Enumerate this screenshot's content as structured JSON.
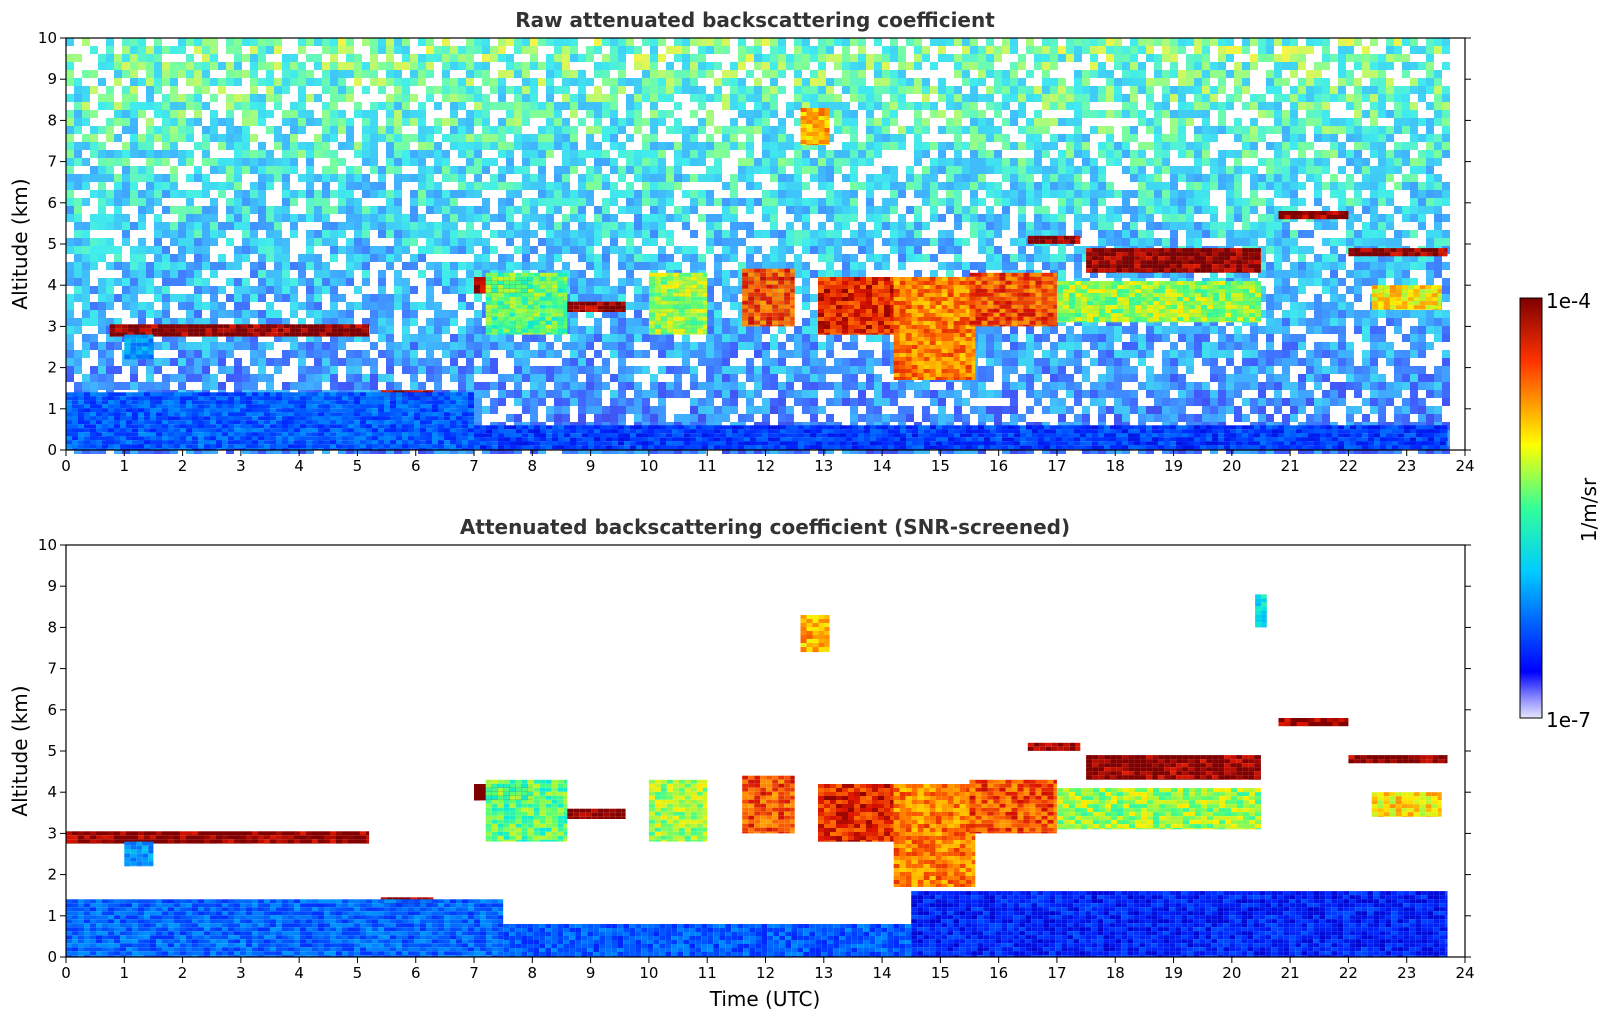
{
  "chart_data": [
    {
      "type": "heatmap",
      "title": "Raw attenuated backscattering coefficient",
      "xlabel": "",
      "ylabel": "Altitude (km)",
      "xlim": [
        0,
        24
      ],
      "ylim": [
        0,
        10
      ],
      "x_ticks": [
        "0",
        "1",
        "2",
        "3",
        "4",
        "5",
        "6",
        "7",
        "8",
        "9",
        "10",
        "11",
        "12",
        "13",
        "14",
        "15",
        "16",
        "17",
        "18",
        "19",
        "20",
        "21",
        "22",
        "23",
        "24"
      ],
      "y_ticks": [
        "0",
        "1",
        "2",
        "3",
        "4",
        "5",
        "6",
        "7",
        "8",
        "9",
        "10"
      ],
      "data_x_end": 23.7,
      "noise_background": true,
      "features": [
        {
          "x": [
            0.75,
            5.2
          ],
          "y": [
            2.75,
            3.05
          ],
          "level": 1.0
        },
        {
          "x": [
            5.4,
            6.3
          ],
          "y": [
            1.25,
            1.45
          ],
          "level": 1.0
        },
        {
          "x": [
            1.0,
            1.5
          ],
          "y": [
            2.2,
            2.8
          ],
          "level": 0.3
        },
        {
          "x": [
            7.0,
            8.0
          ],
          "y": [
            3.8,
            4.2
          ],
          "level": 1.0
        },
        {
          "x": [
            7.2,
            8.6
          ],
          "y": [
            2.8,
            4.3
          ],
          "level": 0.55
        },
        {
          "x": [
            8.6,
            9.6
          ],
          "y": [
            3.35,
            3.6
          ],
          "level": 1.0
        },
        {
          "x": [
            10.0,
            11.0
          ],
          "y": [
            2.8,
            4.3
          ],
          "level": 0.6
        },
        {
          "x": [
            11.6,
            12.5
          ],
          "y": [
            3.0,
            4.4
          ],
          "level": 0.85
        },
        {
          "x": [
            12.9,
            14.2
          ],
          "y": [
            2.8,
            4.2
          ],
          "level": 0.9
        },
        {
          "x": [
            14.2,
            15.6
          ],
          "y": [
            1.7,
            4.2
          ],
          "level": 0.8
        },
        {
          "x": [
            15.5,
            17.0
          ],
          "y": [
            3.0,
            4.3
          ],
          "level": 0.85
        },
        {
          "x": [
            17.0,
            20.5
          ],
          "y": [
            3.1,
            4.1
          ],
          "level": 0.6
        },
        {
          "x": [
            16.5,
            17.4
          ],
          "y": [
            5.0,
            5.2
          ],
          "level": 1.0
        },
        {
          "x": [
            17.5,
            20.5
          ],
          "y": [
            4.3,
            4.9
          ],
          "level": 1.0
        },
        {
          "x": [
            20.8,
            22.0
          ],
          "y": [
            5.6,
            5.8
          ],
          "level": 1.0
        },
        {
          "x": [
            22.0,
            23.7
          ],
          "y": [
            4.7,
            4.9
          ],
          "level": 1.0
        },
        {
          "x": [
            22.4,
            23.6
          ],
          "y": [
            3.4,
            4.0
          ],
          "level": 0.7
        },
        {
          "x": [
            12.6,
            13.1
          ],
          "y": [
            7.4,
            8.3
          ],
          "level": 0.75
        },
        {
          "x": [
            0.0,
            7.0
          ],
          "y": [
            0.0,
            1.4
          ],
          "level": 0.2
        },
        {
          "x": [
            7.0,
            23.7
          ],
          "y": [
            0.0,
            0.6
          ],
          "level": 0.15
        }
      ]
    },
    {
      "type": "heatmap",
      "title": "Attenuated backscattering coefficient (SNR-screened)",
      "xlabel": "Time (UTC)",
      "ylabel": "Altitude (km)",
      "xlim": [
        0,
        24
      ],
      "ylim": [
        0,
        10
      ],
      "x_ticks": [
        "0",
        "1",
        "2",
        "3",
        "4",
        "5",
        "6",
        "7",
        "8",
        "9",
        "10",
        "11",
        "12",
        "13",
        "14",
        "15",
        "16",
        "17",
        "18",
        "19",
        "20",
        "21",
        "22",
        "23",
        "24"
      ],
      "y_ticks": [
        "0",
        "1",
        "2",
        "3",
        "4",
        "5",
        "6",
        "7",
        "8",
        "9",
        "10"
      ],
      "data_x_end": 23.7,
      "noise_background": false,
      "features": [
        {
          "x": [
            0.0,
            5.2
          ],
          "y": [
            2.75,
            3.05
          ],
          "level": 1.0
        },
        {
          "x": [
            5.4,
            6.3
          ],
          "y": [
            1.25,
            1.45
          ],
          "level": 1.0
        },
        {
          "x": [
            1.0,
            1.5
          ],
          "y": [
            2.2,
            2.8
          ],
          "level": 0.3
        },
        {
          "x": [
            7.0,
            8.0
          ],
          "y": [
            3.8,
            4.2
          ],
          "level": 1.0
        },
        {
          "x": [
            7.2,
            8.6
          ],
          "y": [
            2.8,
            4.3
          ],
          "level": 0.55
        },
        {
          "x": [
            8.6,
            9.6
          ],
          "y": [
            3.35,
            3.6
          ],
          "level": 1.0
        },
        {
          "x": [
            10.0,
            11.0
          ],
          "y": [
            2.8,
            4.3
          ],
          "level": 0.6
        },
        {
          "x": [
            11.6,
            12.5
          ],
          "y": [
            3.0,
            4.4
          ],
          "level": 0.85
        },
        {
          "x": [
            12.9,
            14.2
          ],
          "y": [
            2.8,
            4.2
          ],
          "level": 0.9
        },
        {
          "x": [
            14.2,
            15.6
          ],
          "y": [
            1.7,
            4.2
          ],
          "level": 0.8
        },
        {
          "x": [
            15.5,
            17.0
          ],
          "y": [
            3.0,
            4.3
          ],
          "level": 0.85
        },
        {
          "x": [
            17.0,
            20.5
          ],
          "y": [
            3.1,
            4.1
          ],
          "level": 0.6
        },
        {
          "x": [
            16.5,
            17.4
          ],
          "y": [
            5.0,
            5.2
          ],
          "level": 1.0
        },
        {
          "x": [
            17.5,
            20.5
          ],
          "y": [
            4.3,
            4.9
          ],
          "level": 1.0
        },
        {
          "x": [
            20.8,
            22.0
          ],
          "y": [
            5.6,
            5.8
          ],
          "level": 1.0
        },
        {
          "x": [
            22.0,
            23.7
          ],
          "y": [
            4.7,
            4.9
          ],
          "level": 1.0
        },
        {
          "x": [
            22.4,
            23.6
          ],
          "y": [
            3.4,
            4.0
          ],
          "level": 0.7
        },
        {
          "x": [
            12.6,
            13.1
          ],
          "y": [
            7.4,
            8.3
          ],
          "level": 0.75
        },
        {
          "x": [
            20.4,
            20.6
          ],
          "y": [
            8.0,
            8.8
          ],
          "level": 0.45
        },
        {
          "x": [
            0.0,
            7.5
          ],
          "y": [
            0.0,
            1.4
          ],
          "level": 0.22
        },
        {
          "x": [
            7.5,
            14.5
          ],
          "y": [
            0.0,
            0.8
          ],
          "level": 0.2
        },
        {
          "x": [
            14.5,
            23.7
          ],
          "y": [
            0.0,
            1.6
          ],
          "level": 0.1
        }
      ]
    }
  ],
  "colorbar": {
    "label": "1/m/sr",
    "max_label": "1e-4",
    "min_label": "1e-7",
    "colormap": "jet"
  }
}
